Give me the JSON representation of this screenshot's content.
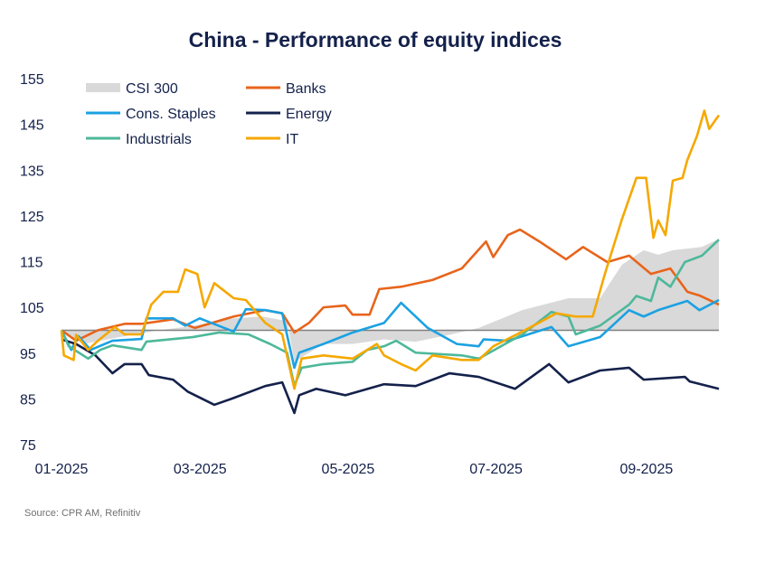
{
  "chart_data": {
    "type": "line",
    "title": "China - Performance of equity indices",
    "source": "Source: CPR AM, Refinitiv",
    "ylim": [
      75,
      155
    ],
    "yticks": [
      "155",
      "145",
      "135",
      "125",
      "115",
      "105",
      "95",
      "85",
      "75"
    ],
    "xticks": [
      {
        "date": "2025-01-01",
        "label": "01-2025"
      },
      {
        "date": "2025-03-01",
        "label": "03-2025"
      },
      {
        "date": "2025-05-01",
        "label": "05-2025"
      },
      {
        "date": "2025-07-01",
        "label": "07-2025"
      },
      {
        "date": "2025-09-01",
        "label": "09-2025"
      }
    ],
    "xlim": [
      "2025-01-01",
      "2025-09-29"
    ],
    "reference_line": 100,
    "grid": false,
    "legend_placement": "top-left",
    "series": [
      {
        "name": "CSI 300",
        "style": "area",
        "color": "#D9D9D9",
        "points": [
          [
            "2025-01-01",
            100
          ],
          [
            "2025-01-10",
            97
          ],
          [
            "2025-01-25",
            98.5
          ],
          [
            "2025-02-10",
            100
          ],
          [
            "2025-02-25",
            101
          ],
          [
            "2025-03-10",
            102.5
          ],
          [
            "2025-03-25",
            103
          ],
          [
            "2025-04-04",
            102
          ],
          [
            "2025-04-07",
            93.1
          ],
          [
            "2025-04-19",
            97
          ],
          [
            "2025-05-01",
            97
          ],
          [
            "2025-05-14",
            98
          ],
          [
            "2025-05-27",
            97.5
          ],
          [
            "2025-06-10",
            99
          ],
          [
            "2025-06-22",
            100.5
          ],
          [
            "2025-07-10",
            104.4
          ],
          [
            "2025-07-29",
            107
          ],
          [
            "2025-08-11",
            107
          ],
          [
            "2025-08-20",
            114.3
          ],
          [
            "2025-08-29",
            117.5
          ],
          [
            "2025-09-04",
            116.5
          ],
          [
            "2025-09-10",
            117.5
          ],
          [
            "2025-09-22",
            118.2
          ],
          [
            "2025-09-29",
            120
          ]
        ]
      },
      {
        "name": "Banks",
        "color": "#E8641B",
        "points": [
          [
            "2025-01-01",
            100
          ],
          [
            "2025-01-07",
            97.7
          ],
          [
            "2025-01-16",
            100
          ],
          [
            "2025-01-27",
            101.4
          ],
          [
            "2025-02-03",
            101.4
          ],
          [
            "2025-02-16",
            102.4
          ],
          [
            "2025-02-25",
            100.5
          ],
          [
            "2025-03-13",
            103
          ],
          [
            "2025-03-26",
            104.4
          ],
          [
            "2025-04-02",
            103.7
          ],
          [
            "2025-04-07",
            99.5
          ],
          [
            "2025-04-13",
            101.6
          ],
          [
            "2025-04-19",
            105
          ],
          [
            "2025-04-28",
            105.4
          ],
          [
            "2025-05-01",
            103.4
          ],
          [
            "2025-05-08",
            103.4
          ],
          [
            "2025-05-12",
            109
          ],
          [
            "2025-05-21",
            109.5
          ],
          [
            "2025-06-03",
            111
          ],
          [
            "2025-06-15",
            113.5
          ],
          [
            "2025-06-25",
            119.4
          ],
          [
            "2025-06-28",
            116
          ],
          [
            "2025-07-04",
            120.8
          ],
          [
            "2025-07-09",
            122
          ],
          [
            "2025-07-17",
            119.4
          ],
          [
            "2025-07-28",
            115.5
          ],
          [
            "2025-08-04",
            118.2
          ],
          [
            "2025-08-14",
            114.9
          ],
          [
            "2025-08-23",
            116.3
          ],
          [
            "2025-09-01",
            112.3
          ],
          [
            "2025-09-09",
            113.5
          ],
          [
            "2025-09-16",
            108.4
          ],
          [
            "2025-09-21",
            107.6
          ],
          [
            "2025-09-29",
            105.6
          ]
        ]
      },
      {
        "name": "Cons. Staples",
        "color": "#1BA1E2",
        "points": [
          [
            "2025-01-01",
            100
          ],
          [
            "2025-01-05",
            95.7
          ],
          [
            "2025-01-08",
            98.7
          ],
          [
            "2025-01-13",
            95.7
          ],
          [
            "2025-01-22",
            97.7
          ],
          [
            "2025-02-03",
            98.1
          ],
          [
            "2025-02-05",
            102.6
          ],
          [
            "2025-02-16",
            102.6
          ],
          [
            "2025-02-21",
            101
          ],
          [
            "2025-02-27",
            102.6
          ],
          [
            "2025-03-13",
            99.7
          ],
          [
            "2025-03-18",
            104.6
          ],
          [
            "2025-03-26",
            104.4
          ],
          [
            "2025-04-02",
            103.7
          ],
          [
            "2025-04-07",
            91.8
          ],
          [
            "2025-04-09",
            95.1
          ],
          [
            "2025-04-19",
            97
          ],
          [
            "2025-05-01",
            99.5
          ],
          [
            "2025-05-14",
            101.6
          ],
          [
            "2025-05-21",
            106
          ],
          [
            "2025-06-01",
            100.5
          ],
          [
            "2025-06-13",
            97
          ],
          [
            "2025-06-22",
            96.5
          ],
          [
            "2025-06-24",
            98
          ],
          [
            "2025-07-04",
            97.7
          ],
          [
            "2025-07-22",
            100.7
          ],
          [
            "2025-07-29",
            96.5
          ],
          [
            "2025-08-11",
            98.5
          ],
          [
            "2025-08-23",
            104.4
          ],
          [
            "2025-08-29",
            103
          ],
          [
            "2025-09-04",
            104.4
          ],
          [
            "2025-09-16",
            106.4
          ],
          [
            "2025-09-21",
            104.4
          ],
          [
            "2025-09-29",
            106.6
          ]
        ]
      },
      {
        "name": "Energy",
        "color": "#14214B",
        "points": [
          [
            "2025-01-01",
            98
          ],
          [
            "2025-01-07",
            97
          ],
          [
            "2025-01-15",
            94.5
          ],
          [
            "2025-01-22",
            90.6
          ],
          [
            "2025-01-27",
            92.6
          ],
          [
            "2025-02-03",
            92.6
          ],
          [
            "2025-02-06",
            90.2
          ],
          [
            "2025-02-16",
            89.2
          ],
          [
            "2025-02-22",
            86.6
          ],
          [
            "2025-03-05",
            83.7
          ],
          [
            "2025-03-13",
            85.2
          ],
          [
            "2025-03-26",
            87.8
          ],
          [
            "2025-04-02",
            88.6
          ],
          [
            "2025-04-07",
            81.9
          ],
          [
            "2025-04-09",
            85.8
          ],
          [
            "2025-04-16",
            87.2
          ],
          [
            "2025-04-28",
            85.8
          ],
          [
            "2025-05-14",
            88.2
          ],
          [
            "2025-05-27",
            87.8
          ],
          [
            "2025-06-10",
            90.6
          ],
          [
            "2025-06-22",
            89.8
          ],
          [
            "2025-07-07",
            87.2
          ],
          [
            "2025-07-21",
            92.6
          ],
          [
            "2025-07-29",
            88.6
          ],
          [
            "2025-08-11",
            91.2
          ],
          [
            "2025-08-23",
            91.8
          ],
          [
            "2025-08-29",
            89.2
          ],
          [
            "2025-09-15",
            89.8
          ],
          [
            "2025-09-17",
            88.8
          ],
          [
            "2025-09-29",
            87.2
          ]
        ]
      },
      {
        "name": "Industrials",
        "color": "#4DB89A",
        "points": [
          [
            "2025-01-01",
            100
          ],
          [
            "2025-01-04",
            96.5
          ],
          [
            "2025-01-12",
            93.8
          ],
          [
            "2025-01-17",
            95.7
          ],
          [
            "2025-01-22",
            96.7
          ],
          [
            "2025-02-03",
            95.7
          ],
          [
            "2025-02-05",
            97.5
          ],
          [
            "2025-02-24",
            98.5
          ],
          [
            "2025-03-07",
            99.5
          ],
          [
            "2025-03-19",
            99.1
          ],
          [
            "2025-03-28",
            97
          ],
          [
            "2025-04-04",
            95.1
          ],
          [
            "2025-04-07",
            87.8
          ],
          [
            "2025-04-10",
            91.8
          ],
          [
            "2025-04-19",
            92.6
          ],
          [
            "2025-05-01",
            93.1
          ],
          [
            "2025-05-07",
            95.7
          ],
          [
            "2025-05-14",
            96.5
          ],
          [
            "2025-05-19",
            97.7
          ],
          [
            "2025-05-27",
            95.1
          ],
          [
            "2025-06-15",
            94.5
          ],
          [
            "2025-06-22",
            93.8
          ],
          [
            "2025-07-10",
            99.1
          ],
          [
            "2025-07-22",
            104
          ],
          [
            "2025-07-29",
            103
          ],
          [
            "2025-08-01",
            99.1
          ],
          [
            "2025-08-11",
            101
          ],
          [
            "2025-08-23",
            105.6
          ],
          [
            "2025-08-26",
            107.5
          ],
          [
            "2025-09-01",
            106.4
          ],
          [
            "2025-09-04",
            111.5
          ],
          [
            "2025-09-09",
            109.5
          ],
          [
            "2025-09-15",
            114.9
          ],
          [
            "2025-09-22",
            116.3
          ],
          [
            "2025-09-29",
            119.8
          ]
        ]
      },
      {
        "name": "IT",
        "color": "#F5A800",
        "points": [
          [
            "2025-01-01",
            100
          ],
          [
            "2025-01-02",
            94.5
          ],
          [
            "2025-01-06",
            93.5
          ],
          [
            "2025-01-07",
            99
          ],
          [
            "2025-01-12",
            95.7
          ],
          [
            "2025-01-16",
            97.7
          ],
          [
            "2025-01-23",
            100.7
          ],
          [
            "2025-01-27",
            99.1
          ],
          [
            "2025-02-03",
            99.1
          ],
          [
            "2025-02-07",
            105.6
          ],
          [
            "2025-02-12",
            108.4
          ],
          [
            "2025-02-18",
            108.4
          ],
          [
            "2025-02-21",
            113.3
          ],
          [
            "2025-02-26",
            112.3
          ],
          [
            "2025-03-01",
            105
          ],
          [
            "2025-03-05",
            110.3
          ],
          [
            "2025-03-13",
            107
          ],
          [
            "2025-03-18",
            106.6
          ],
          [
            "2025-03-26",
            101.6
          ],
          [
            "2025-04-02",
            99.1
          ],
          [
            "2025-04-07",
            87.2
          ],
          [
            "2025-04-10",
            93.8
          ],
          [
            "2025-04-19",
            94.5
          ],
          [
            "2025-05-01",
            93.8
          ],
          [
            "2025-05-07",
            95.7
          ],
          [
            "2025-05-11",
            97
          ],
          [
            "2025-05-14",
            94.5
          ],
          [
            "2025-05-21",
            92.6
          ],
          [
            "2025-05-27",
            91.2
          ],
          [
            "2025-06-03",
            94.5
          ],
          [
            "2025-06-15",
            93.5
          ],
          [
            "2025-06-22",
            93.5
          ],
          [
            "2025-06-28",
            96.5
          ],
          [
            "2025-07-10",
            99.7
          ],
          [
            "2025-07-24",
            103.7
          ],
          [
            "2025-08-01",
            103
          ],
          [
            "2025-08-08",
            103
          ],
          [
            "2025-08-13",
            112.3
          ],
          [
            "2025-08-20",
            124.2
          ],
          [
            "2025-08-26",
            133.3
          ],
          [
            "2025-08-30",
            133.3
          ],
          [
            "2025-09-02",
            120.2
          ],
          [
            "2025-09-04",
            124
          ],
          [
            "2025-09-07",
            120.8
          ],
          [
            "2025-09-10",
            132.7
          ],
          [
            "2025-09-14",
            133.3
          ],
          [
            "2025-09-16",
            137.2
          ],
          [
            "2025-09-20",
            142.5
          ],
          [
            "2025-09-23",
            148
          ],
          [
            "2025-09-25",
            144
          ],
          [
            "2025-09-29",
            147
          ]
        ]
      }
    ]
  }
}
